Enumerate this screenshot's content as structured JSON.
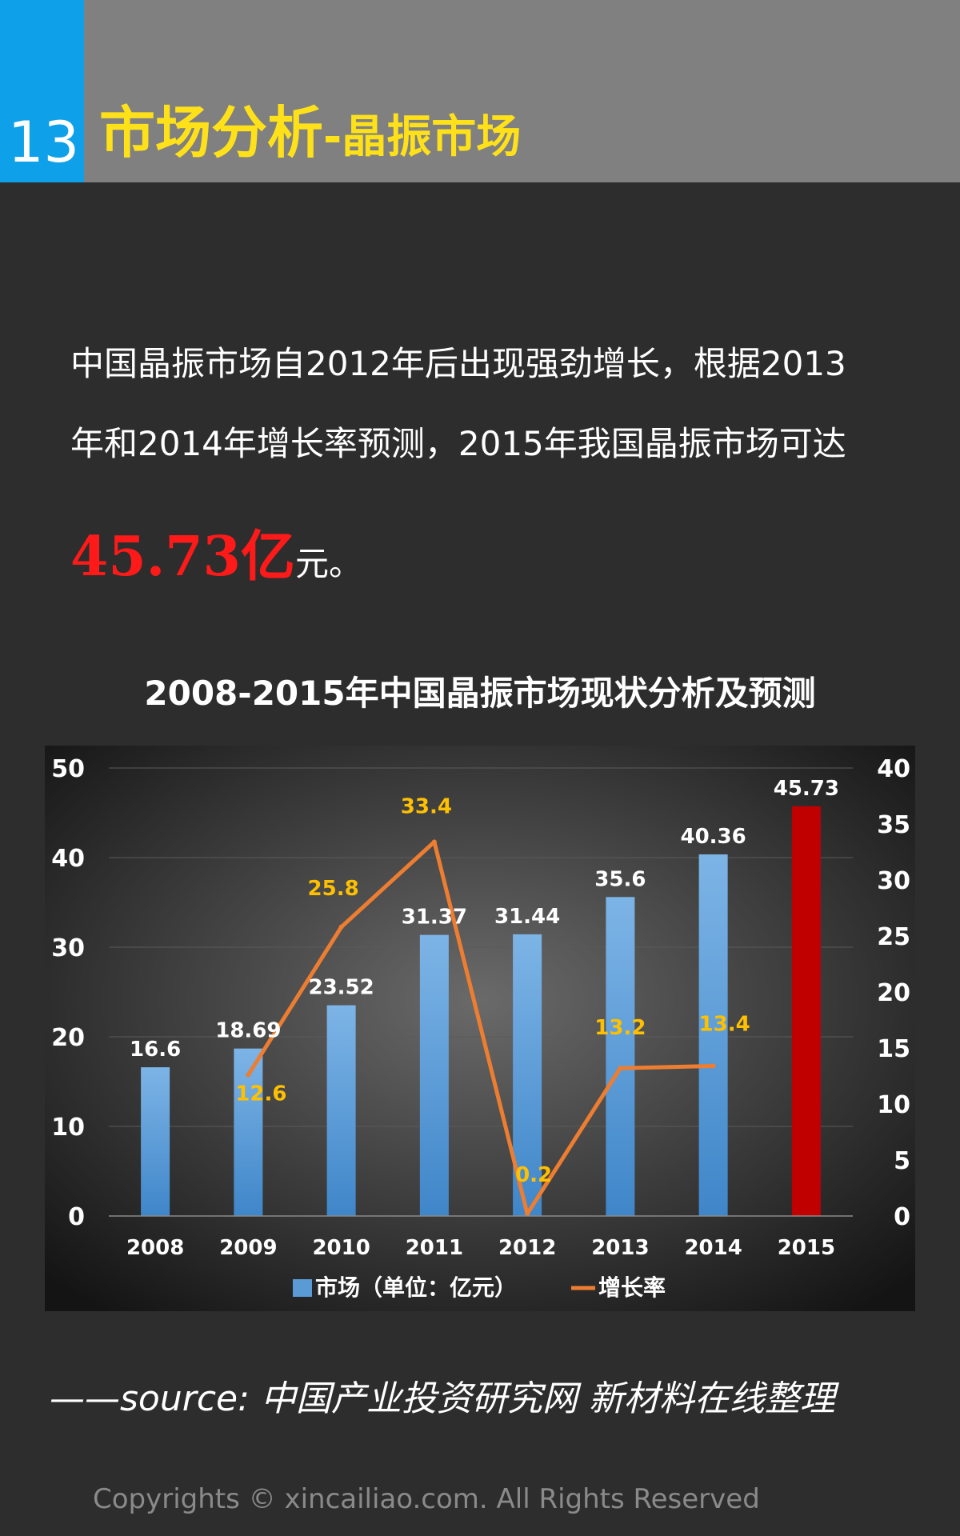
{
  "page": {
    "number": "13",
    "title": "市场分析",
    "subtitle": "-晶振市场",
    "intro": "中国晶振市场自2012年后出现强劲增长，根据2013年和2014年增长率预测，2015年我国晶振市场可达",
    "highlight_value": "45.73亿",
    "highlight_tail": "元。",
    "source": "——source:  中国产业投资研究网    新材料在线整理",
    "copyright": "Copyrights © xincailiao.com. All Rights Reserved"
  },
  "colors": {
    "bar": "#5b9bd5",
    "bar_highlight": "#c00000",
    "line": "#ed7d31",
    "growth_label": "#ffc000",
    "market_label": "#ffffff",
    "accent_blue": "#0ea0e8",
    "title_yellow": "#ffe11a"
  },
  "chart_data": {
    "type": "bar",
    "title": "2008-2015年中国晶振市场现状分析及预测",
    "categories": [
      "2008",
      "2009",
      "2010",
      "2011",
      "2012",
      "2013",
      "2014",
      "2015"
    ],
    "series": [
      {
        "name": "市场（单位：亿元）",
        "type": "bar",
        "axis": "left",
        "values": [
          16.6,
          18.69,
          23.52,
          31.37,
          31.44,
          35.6,
          40.36,
          45.73
        ],
        "labels": [
          "16.6",
          "18.69",
          "23.52",
          "31.37",
          "31.44",
          "35.6",
          "40.36",
          "45.73"
        ]
      },
      {
        "name": "增长率",
        "type": "line",
        "axis": "right",
        "values": [
          null,
          12.6,
          25.8,
          33.4,
          0.2,
          13.2,
          13.4,
          null
        ],
        "labels": [
          "",
          "12.6",
          "25.8",
          "33.4",
          "0.2",
          "13.2",
          "13.4",
          ""
        ]
      }
    ],
    "y_left": {
      "min": 0,
      "max": 50,
      "ticks": [
        "0",
        "10",
        "20",
        "30",
        "40",
        "50"
      ]
    },
    "y_right": {
      "min": 0,
      "max": 40,
      "ticks": [
        "0",
        "5",
        "10",
        "15",
        "20",
        "25",
        "30",
        "35",
        "40"
      ]
    },
    "grid": true,
    "legend": "bottom"
  }
}
